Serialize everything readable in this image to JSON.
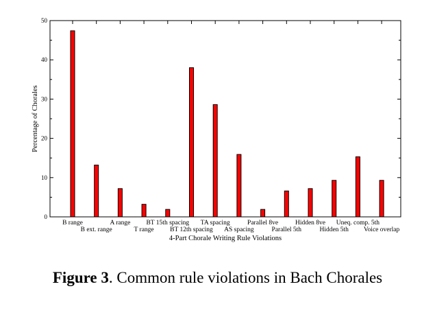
{
  "chart_data": {
    "type": "bar",
    "title": "",
    "xlabel": "4-Part Chorale Writing Rule Violations",
    "ylabel": "Percentage of Chorales",
    "ylim": [
      0,
      50
    ],
    "yticks": [
      0,
      10,
      20,
      30,
      40,
      50
    ],
    "grid": false,
    "bar_color": "#ff0000",
    "categories": [
      "B range",
      "B ext. range",
      "A range",
      "T range",
      "BT 15th spacing",
      "BT 12th spacing",
      "TA spacing",
      "AS spacing",
      "Parallel 8ve",
      "Parallel 5th",
      "Hidden 8ve",
      "Hidden 5th",
      "Uneq. comp. 5th",
      "Voice overlap"
    ],
    "values": [
      47.4,
      13.2,
      7.2,
      3.2,
      1.9,
      38.0,
      28.6,
      15.9,
      1.9,
      6.6,
      7.2,
      9.3,
      15.3,
      9.3
    ]
  },
  "caption": {
    "label": "Figure 3",
    "text": ". Common rule violations in Bach Chorales"
  }
}
